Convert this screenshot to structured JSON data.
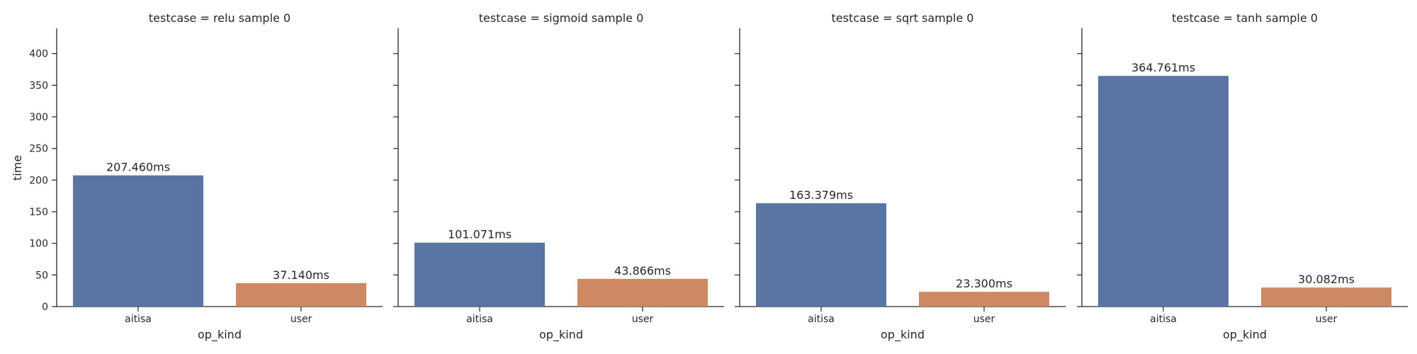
{
  "chart_data": {
    "type": "bar",
    "xlabel": "op_kind",
    "ylabel": "time",
    "ylim": [
      0,
      440
    ],
    "yticks": [
      0,
      50,
      100,
      150,
      200,
      250,
      300,
      350,
      400
    ],
    "categories": [
      "aitisa",
      "user"
    ],
    "colors": [
      "#5975a4",
      "#cc8963"
    ],
    "grid": false,
    "panels": [
      {
        "title": "testcase = relu sample 0",
        "values": [
          207.46,
          37.14
        ],
        "labels": [
          "207.460ms",
          "37.140ms"
        ]
      },
      {
        "title": "testcase = sigmoid sample 0",
        "values": [
          101.071,
          43.866
        ],
        "labels": [
          "101.071ms",
          "43.866ms"
        ]
      },
      {
        "title": "testcase = sqrt sample 0",
        "values": [
          163.379,
          23.3
        ],
        "labels": [
          "163.379ms",
          "23.300ms"
        ]
      },
      {
        "title": "testcase = tanh sample 0",
        "values": [
          364.761,
          30.082
        ],
        "labels": [
          "364.761ms",
          "30.082ms"
        ]
      }
    ]
  }
}
